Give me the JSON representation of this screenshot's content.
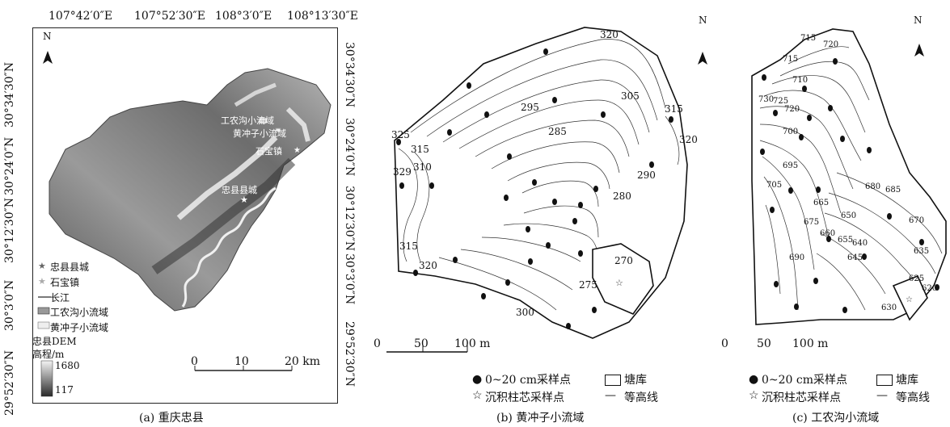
{
  "panel_a": {
    "top_ticks": [
      "107°42′0″E",
      "107°52′30″E",
      "108°3′0″E",
      "108°13′30″E"
    ],
    "left_ticks": [
      "30°34′30″N",
      "30°24′0″N",
      "30°12′30″N",
      "30°3′0″N",
      "29°52′30″N"
    ],
    "right_ticks": [
      "30°34′30″N",
      "30°24′0″N",
      "30°12′30″N",
      "30°3′0″N",
      "29°52′30″N"
    ],
    "north": "N",
    "map_labels": {
      "gongnonggou": "工农沟小流域",
      "huangchongzi": "黄冲子小流域",
      "shibao": "石宝镇",
      "zhongxian": "忠县县城"
    },
    "legend": {
      "county": "忠县县城",
      "shibao": "石宝镇",
      "river": "长江",
      "gongnonggou": "工农沟小流域",
      "huangchongzi": "黄冲子小流域",
      "dem_title": "忠县DEM",
      "elev_label": "高程/m",
      "elev_max": "1680",
      "elev_min": "117"
    },
    "scale": {
      "ticks": [
        "0",
        "10",
        "20 km"
      ]
    },
    "caption": "(a) 重庆忠县"
  },
  "panel_b": {
    "north": "N",
    "contours": [
      "320",
      "305",
      "315",
      "320",
      "295",
      "285",
      "290",
      "280",
      "270",
      "275",
      "300",
      "325",
      "315",
      "310",
      "329",
      "315",
      "320"
    ],
    "scale": {
      "ticks": [
        "0",
        "50",
        "100 m"
      ]
    },
    "legend": {
      "sample": "0~20 cm采样点",
      "pond": "塘库",
      "core": "沉积柱芯采样点",
      "contour": "等高线"
    },
    "caption": "(b) 黄冲子小流域"
  },
  "panel_c": {
    "north": "N",
    "contours": [
      "715",
      "720",
      "715",
      "710",
      "730",
      "725",
      "720",
      "700",
      "695",
      "705",
      "680",
      "685",
      "670",
      "665",
      "675",
      "650",
      "660",
      "655",
      "640",
      "645",
      "635",
      "690",
      "625",
      "620",
      "630"
    ],
    "scale": {
      "ticks": [
        "0",
        "50",
        "100 m"
      ]
    },
    "legend": {
      "sample": "0~20 cm采样点",
      "pond": "塘库",
      "core": "沉积柱芯采样点",
      "contour": "等高线"
    },
    "caption": "(c) 工农沟小流域"
  },
  "colors": {
    "dem_high": "#f4f4f4",
    "dem_low": "#2a2a2a",
    "line": "#222222"
  }
}
